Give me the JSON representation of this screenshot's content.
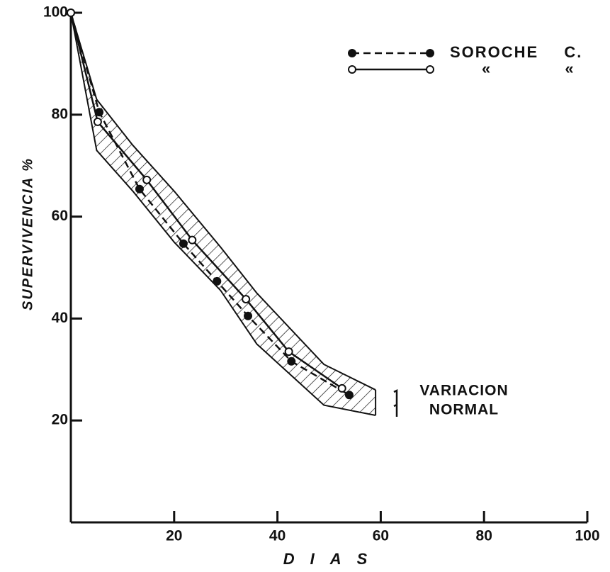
{
  "chart_data": {
    "type": "line",
    "xlabel": "DIAS",
    "ylabel": "SUPERVIVENCIA %",
    "xlim": [
      0,
      100
    ],
    "ylim": [
      0,
      100
    ],
    "xticks": [
      20,
      40,
      60,
      80,
      100
    ],
    "yticks": [
      20,
      40,
      60,
      80,
      100
    ],
    "series": [
      {
        "name": "SOROCHE C.",
        "color": "#111111",
        "marker": "filled",
        "dashed": true,
        "x": [
          0,
          5.5,
          13.3,
          21.8,
          28.3,
          34.3,
          42.7,
          53.9
        ],
        "values": [
          100,
          80.5,
          65.4,
          54.7,
          47.3,
          40.5,
          31.6,
          25.0
        ]
      },
      {
        "name": "« «",
        "color": "#111111",
        "marker": "open",
        "dashed": false,
        "x": [
          0,
          5.2,
          14.7,
          23.5,
          33.9,
          42.2,
          52.5
        ],
        "values": [
          100,
          78.6,
          67.2,
          55.4,
          43.8,
          33.5,
          26.3
        ]
      }
    ],
    "band": {
      "label": [
        "VARIACION",
        "NORMAL"
      ],
      "x": [
        0,
        5,
        12,
        20,
        29,
        36,
        49,
        59
      ],
      "upper": [
        100,
        83,
        74,
        65,
        54,
        45,
        31,
        26
      ],
      "lower": [
        100,
        73,
        65,
        55,
        45.5,
        35,
        23,
        21
      ]
    }
  }
}
